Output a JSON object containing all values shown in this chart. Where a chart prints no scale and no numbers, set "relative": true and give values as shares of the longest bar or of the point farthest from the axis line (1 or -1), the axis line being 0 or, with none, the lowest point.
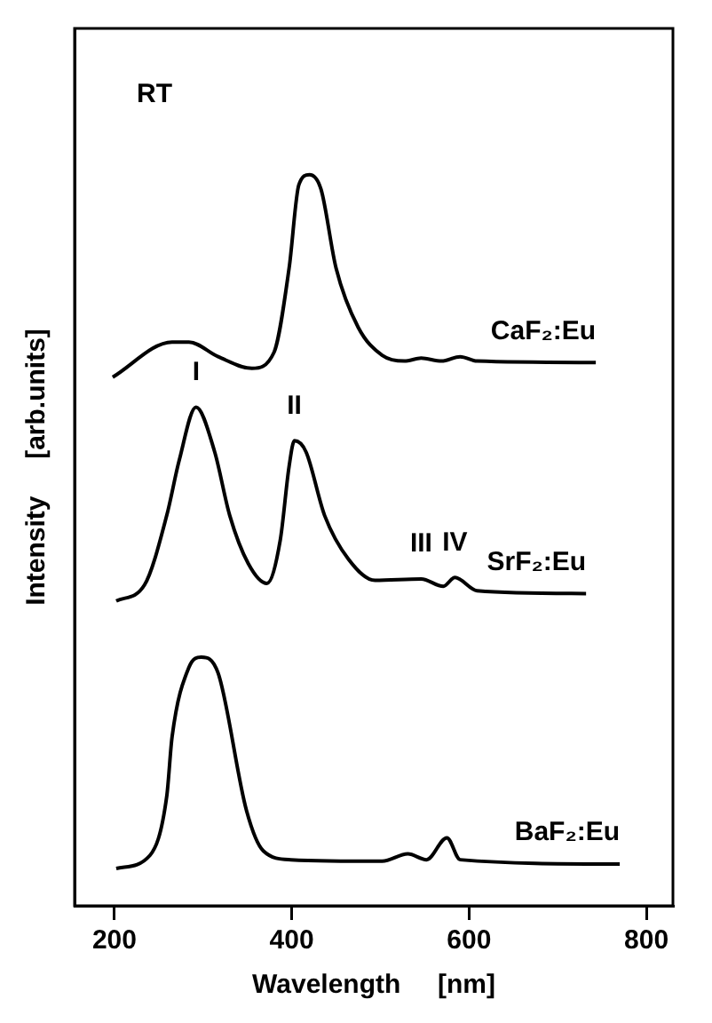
{
  "chart_data": {
    "type": "line",
    "xlabel": "Wavelength     [nm]",
    "ylabel": "Intensity     [arb.units]",
    "relative": true,
    "xlim": [
      155,
      830
    ],
    "xticks": [
      200,
      400,
      600,
      800
    ],
    "grid": false,
    "legend": false,
    "marker": "none",
    "line_style": "solid",
    "annotations": [
      "RT",
      {
        "text": "I",
        "x": 292,
        "y": 0.682
      },
      {
        "text": "II",
        "x": 403,
        "y": 0.636
      },
      {
        "text": "III",
        "x": 546,
        "y": 0.447
      },
      {
        "text": "IV",
        "x": 584,
        "y": 0.449
      }
    ],
    "series": [
      {
        "name": "CaF₂:Eu",
        "color": "#000000",
        "x": [
          198,
          265,
          284,
          317,
          355,
          380,
          397,
          408,
          420,
          433,
          450,
          475,
          502,
          527,
          546,
          569,
          590,
          609,
          743
        ],
        "values": [
          0.723,
          0.771,
          0.771,
          0.751,
          0.735,
          0.757,
          0.872,
          0.986,
          1.0,
          0.98,
          0.872,
          0.791,
          0.753,
          0.745,
          0.749,
          0.745,
          0.751,
          0.745,
          0.743
        ]
      },
      {
        "name": "SrF₂:Eu",
        "color": "#000000",
        "x": [
          202,
          234,
          259,
          273,
          292,
          313,
          330,
          351,
          372,
          387,
          397,
          403,
          416,
          437,
          464,
          494,
          546,
          571,
          584,
          609,
          732
        ],
        "values": [
          0.417,
          0.439,
          0.534,
          0.609,
          0.682,
          0.621,
          0.534,
          0.468,
          0.441,
          0.5,
          0.601,
          0.636,
          0.621,
          0.534,
          0.474,
          0.445,
          0.447,
          0.437,
          0.449,
          0.431,
          0.427
        ]
      },
      {
        "name": "BaF₂:Eu",
        "color": "#000000",
        "x": [
          202,
          240,
          259,
          265,
          284,
          298,
          317,
          349,
          368,
          399,
          502,
          531,
          552,
          575,
          590,
          770
        ],
        "values": [
          0.051,
          0.069,
          0.15,
          0.231,
          0.326,
          0.34,
          0.318,
          0.13,
          0.075,
          0.063,
          0.061,
          0.071,
          0.063,
          0.093,
          0.063,
          0.057
        ]
      }
    ]
  }
}
